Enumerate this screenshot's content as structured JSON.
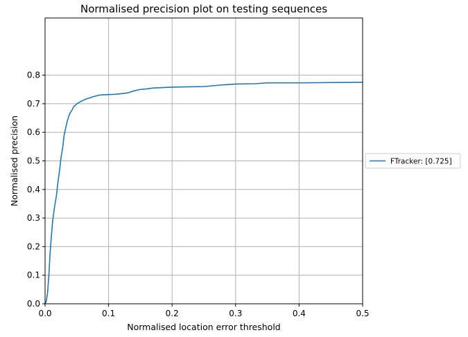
{
  "chart_data": {
    "type": "line",
    "title": "Normalised precision plot on testing sequences",
    "xlabel": "Normalised location error threshold",
    "ylabel": "Normalised precision",
    "xlim": [
      0,
      0.5
    ],
    "ylim": [
      0,
      1.0
    ],
    "x_ticks": [
      "0.0",
      "0.1",
      "0.2",
      "0.3",
      "0.4",
      "0.5"
    ],
    "y_ticks": [
      "0.0",
      "0.1",
      "0.2",
      "0.3",
      "0.4",
      "0.5",
      "0.6",
      "0.7",
      "0.8"
    ],
    "grid": true,
    "legend": "outside-right",
    "series": [
      {
        "name": "FTracker: [0.725]",
        "color": "#1f77b4",
        "x": [
          0,
          0.002,
          0.004,
          0.006,
          0.008,
          0.01,
          0.012,
          0.015,
          0.018,
          0.02,
          0.023,
          0.025,
          0.028,
          0.03,
          0.033,
          0.035,
          0.038,
          0.04,
          0.043,
          0.045,
          0.048,
          0.05,
          0.055,
          0.06,
          0.065,
          0.07,
          0.075,
          0.08,
          0.085,
          0.09,
          0.1,
          0.11,
          0.12,
          0.13,
          0.14,
          0.15,
          0.16,
          0.17,
          0.18,
          0.19,
          0.2,
          0.22,
          0.25,
          0.28,
          0.3,
          0.33,
          0.35,
          0.4,
          0.45,
          0.5
        ],
        "y": [
          0.0,
          0.01,
          0.04,
          0.1,
          0.18,
          0.24,
          0.29,
          0.34,
          0.38,
          0.42,
          0.47,
          0.51,
          0.55,
          0.59,
          0.62,
          0.64,
          0.66,
          0.67,
          0.68,
          0.69,
          0.695,
          0.7,
          0.706,
          0.712,
          0.717,
          0.72,
          0.724,
          0.727,
          0.73,
          0.731,
          0.732,
          0.733,
          0.735,
          0.738,
          0.745,
          0.75,
          0.752,
          0.755,
          0.756,
          0.757,
          0.758,
          0.759,
          0.76,
          0.766,
          0.769,
          0.77,
          0.773,
          0.773,
          0.774,
          0.775
        ]
      }
    ]
  }
}
